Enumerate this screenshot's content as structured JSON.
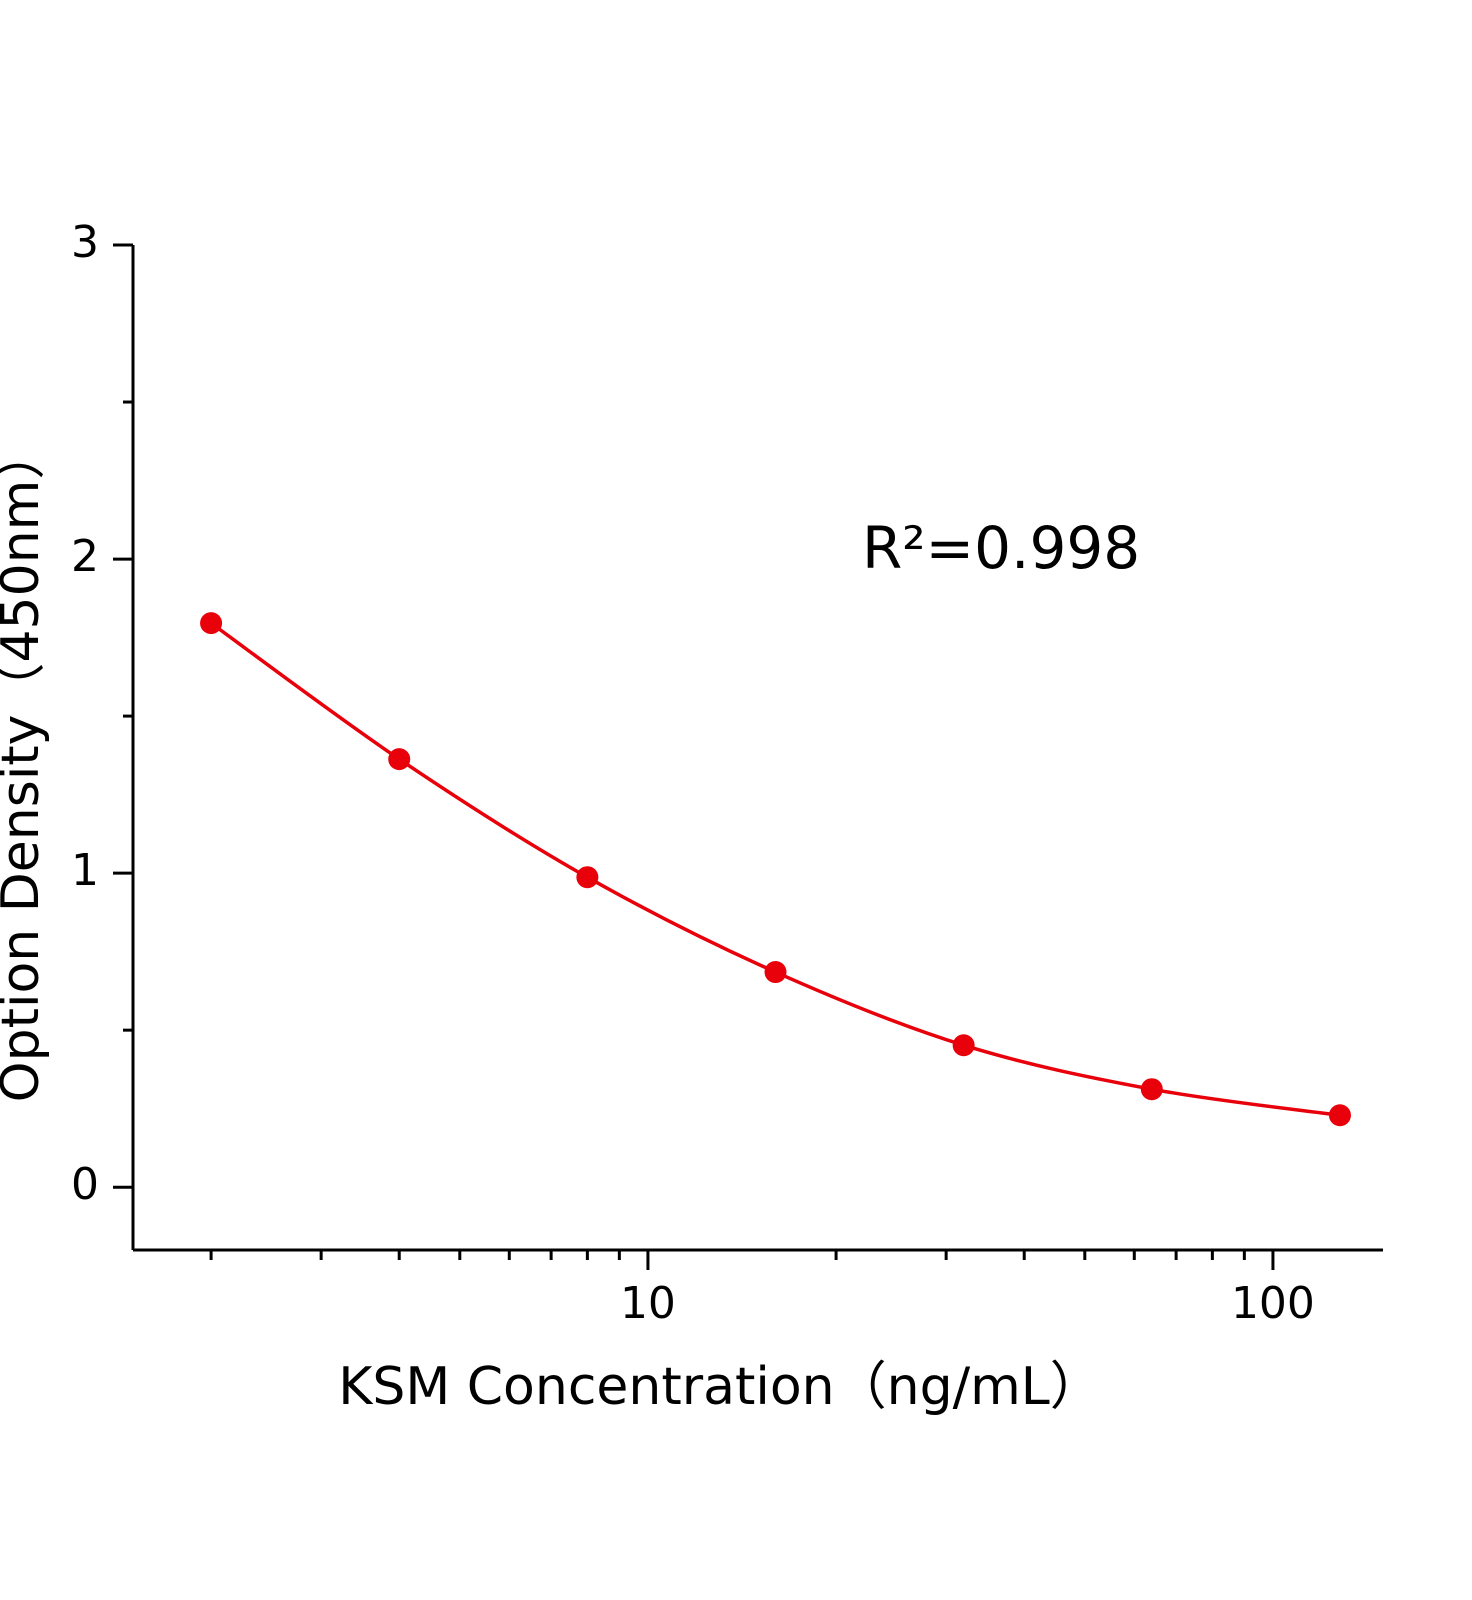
{
  "chart_data": {
    "type": "line",
    "x_label": "KSM Concentration（ng/mL）",
    "y_label": "Option Density（450nm）",
    "annotation": "R²=0.998",
    "xlog": true,
    "x": [
      2,
      4,
      8,
      16,
      32,
      64,
      128
    ],
    "series": [
      {
        "color": "#e8000b",
        "values": [
          1.796,
          1.363,
          0.987,
          0.685,
          0.452,
          0.312,
          0.229
        ]
      }
    ],
    "xlim": [
      1.5,
      150
    ],
    "xticks": [
      10,
      100
    ],
    "xminorticks": [
      2,
      3,
      4,
      5,
      6,
      7,
      8,
      9,
      20,
      30,
      40,
      50,
      60,
      70,
      80,
      90
    ],
    "ylim": [
      -0.2,
      3
    ],
    "yticks": [
      0,
      1,
      2,
      3
    ],
    "yminorticks": [
      0.5,
      1.5,
      2.5
    ]
  }
}
